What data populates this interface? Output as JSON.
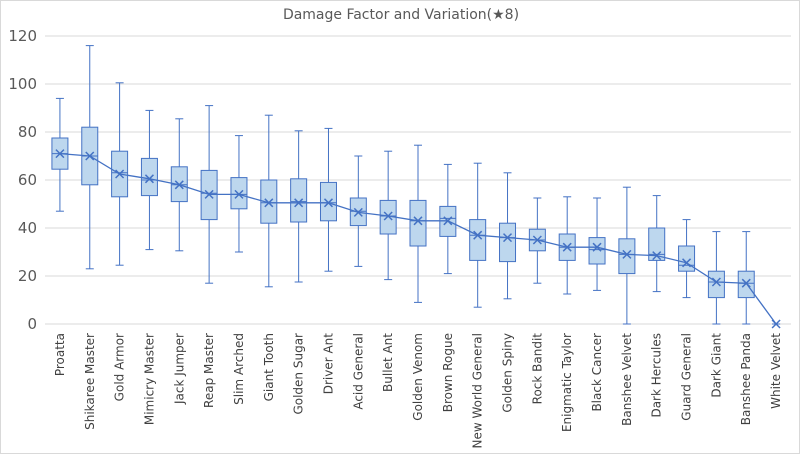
{
  "chart_data": {
    "type": "box",
    "title": "Damage Factor and Variation(★8)",
    "ylim": [
      0,
      120
    ],
    "yticks": [
      0,
      20,
      40,
      60,
      80,
      100,
      120
    ],
    "grid": true,
    "colors": {
      "box_fill": "#bdd7ee",
      "box_stroke": "#4472c4",
      "mean_line": "#4472c4",
      "grid": "#d9d9d9",
      "axis_text": "#595959"
    },
    "categories": [
      "Proatta",
      "Shikaree Master",
      "Gold Armor",
      "Mimicry Master",
      "Jack Jumper",
      "Reap Master",
      "Slim Arched",
      "Giant Tooth",
      "Golden Sugar",
      "Driver Ant",
      "Acid General",
      "Bullet Ant",
      "Golden Venom",
      "Brown Rogue",
      "New World General",
      "Golden Spiny",
      "Rock Bandit",
      "Enigmatic Taylor",
      "Black Cancer",
      "Banshee Velvet",
      "Dark Hercules",
      "Guard General",
      "Dark Giant",
      "Banshee Panda",
      "White Velvet"
    ],
    "min": [
      47,
      23,
      24.5,
      31,
      30.5,
      17,
      30,
      15.5,
      17.5,
      22,
      24,
      18.5,
      9,
      21,
      7,
      10.5,
      17,
      12.5,
      14,
      0,
      13.5,
      11,
      0,
      0,
      0
    ],
    "q1": [
      64.5,
      58,
      53,
      53.5,
      51,
      43.5,
      48,
      42,
      42.5,
      43,
      41,
      37.5,
      32.5,
      36.5,
      26.5,
      26,
      30.5,
      26.5,
      25,
      21,
      26.5,
      22,
      11,
      11,
      0
    ],
    "median": [
      71,
      70,
      63,
      60,
      58,
      54.5,
      54,
      50.5,
      51,
      50.5,
      47,
      45,
      43,
      44,
      37,
      36,
      35,
      32,
      31,
      29,
      29,
      24.5,
      17.5,
      17,
      0
    ],
    "q3": [
      77.5,
      82,
      72,
      69,
      65.5,
      64,
      61,
      60,
      60.5,
      59,
      52.5,
      51.5,
      51.5,
      49,
      43.5,
      42,
      39.5,
      37.5,
      36,
      35.5,
      40,
      32.5,
      22,
      22,
      0
    ],
    "max": [
      94,
      116,
      100.5,
      89,
      85.5,
      91,
      78.5,
      87,
      80.5,
      81.5,
      70,
      72,
      74.5,
      66.5,
      67,
      63,
      52.5,
      53,
      52.5,
      57,
      53.5,
      43.5,
      38.5,
      38.5,
      0
    ],
    "mean": [
      71,
      70,
      62.5,
      60.5,
      58,
      54,
      54,
      50.5,
      50.5,
      50.5,
      46.5,
      45,
      43,
      43,
      37,
      36,
      35,
      32,
      32,
      29,
      28.5,
      25.5,
      17.5,
      17,
      0
    ]
  }
}
